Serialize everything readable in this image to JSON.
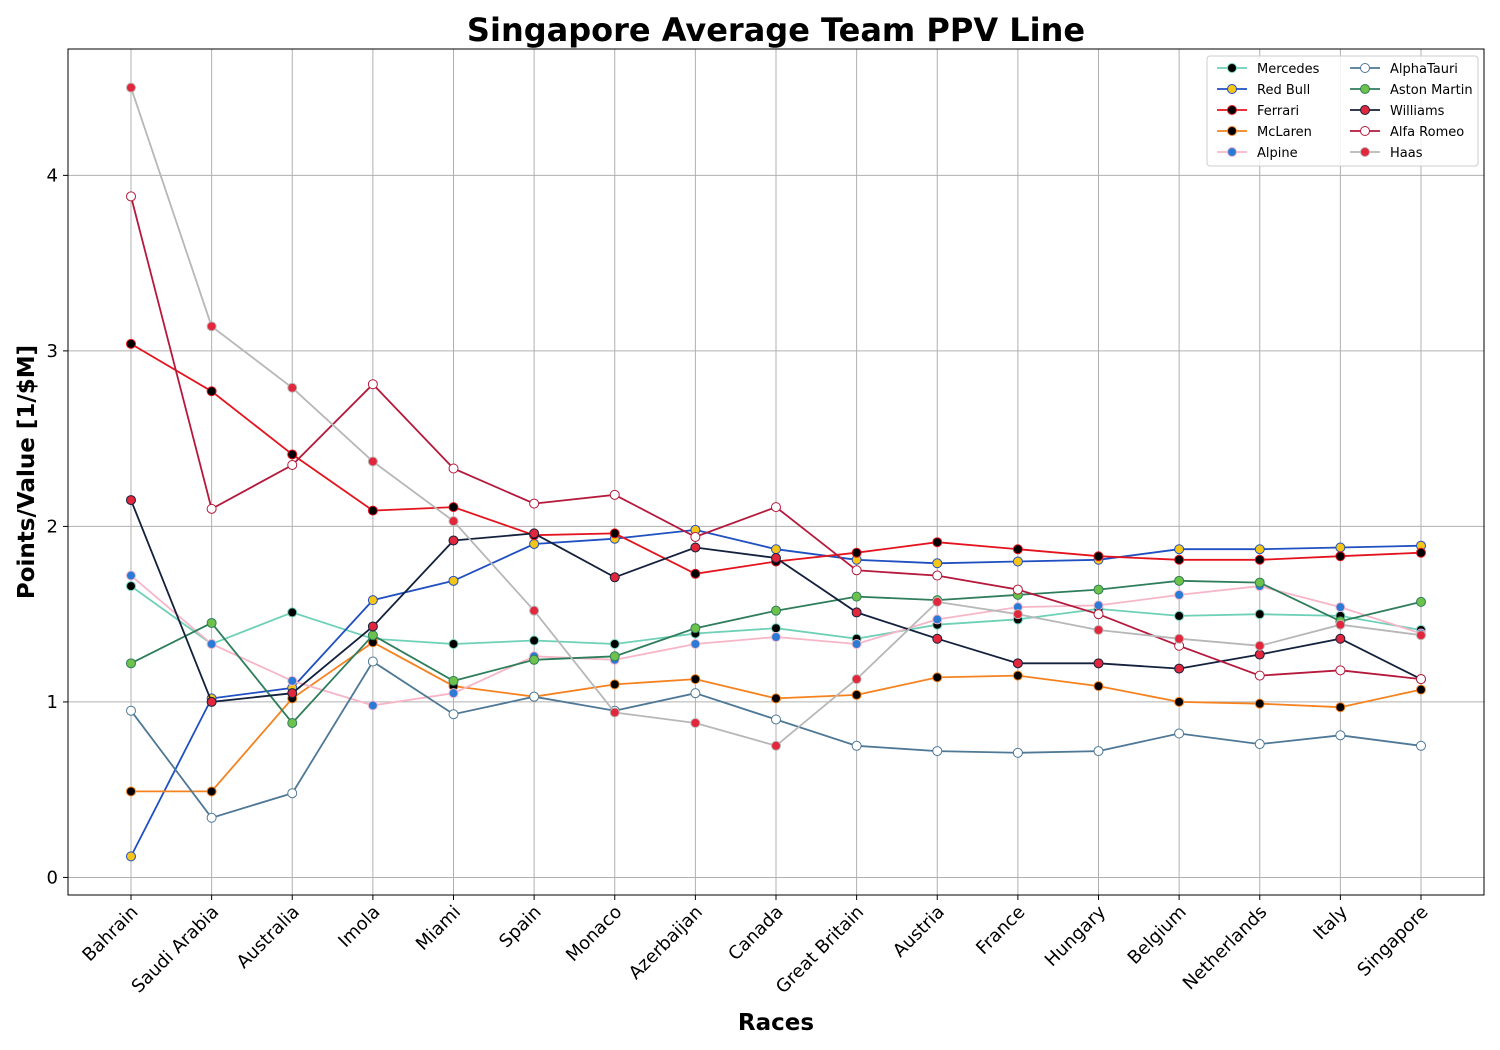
{
  "chart_data": {
    "type": "line",
    "title": "Singapore Average Team PPV Line",
    "xlabel": "Races",
    "ylabel": "Points/Value [1/$M]",
    "categories": [
      "Bahrain",
      "Saudi Arabia",
      "Australia",
      "Imola",
      "Miami",
      "Spain",
      "Monaco",
      "Azerbaijan",
      "Canada",
      "Great Britain",
      "Austria",
      "France",
      "Hungary",
      "Belgium",
      "Netherlands",
      "Italy",
      "Singapore"
    ],
    "ylim": [
      -0.1,
      4.72
    ],
    "yticks": [
      0,
      1,
      2,
      3,
      4
    ],
    "grid": true,
    "legend_position": "top-right",
    "series": [
      {
        "name": "Mercedes",
        "line_color": "#6fd0b8",
        "marker_face": "#000000",
        "marker_edge": "#6fd0b8",
        "values": [
          1.66,
          1.33,
          1.51,
          1.36,
          1.33,
          1.35,
          1.33,
          1.39,
          1.42,
          1.36,
          1.44,
          1.47,
          1.53,
          1.49,
          1.5,
          1.49,
          1.41
        ]
      },
      {
        "name": "Red Bull",
        "line_color": "#1f4fc0",
        "marker_face": "#f5c518",
        "marker_edge": "#1f4fc0",
        "values": [
          0.12,
          1.02,
          1.08,
          1.58,
          1.69,
          1.9,
          1.93,
          1.98,
          1.87,
          1.81,
          1.79,
          1.8,
          1.81,
          1.87,
          1.87,
          1.88,
          1.89
        ]
      },
      {
        "name": "Ferrari",
        "line_color": "#e4141e",
        "marker_face": "#000000",
        "marker_edge": "#e4141e",
        "values": [
          3.04,
          2.77,
          2.41,
          2.09,
          2.11,
          1.95,
          1.96,
          1.73,
          1.8,
          1.85,
          1.91,
          1.87,
          1.83,
          1.81,
          1.81,
          1.83,
          1.85
        ]
      },
      {
        "name": "McLaren",
        "line_color": "#f5821f",
        "marker_face": "#000000",
        "marker_edge": "#f5821f",
        "values": [
          0.49,
          0.49,
          1.02,
          1.34,
          1.09,
          1.03,
          1.1,
          1.13,
          1.02,
          1.04,
          1.14,
          1.15,
          1.09,
          1.0,
          0.99,
          0.97,
          1.07
        ]
      },
      {
        "name": "Alpine",
        "line_color": "#f7b6c8",
        "marker_face": "#2b7bd6",
        "marker_edge": "#f7b6c8",
        "values": [
          1.72,
          1.33,
          1.12,
          0.98,
          1.05,
          1.26,
          1.24,
          1.33,
          1.37,
          1.33,
          1.47,
          1.54,
          1.55,
          1.61,
          1.66,
          1.54,
          1.39
        ]
      },
      {
        "name": "AlphaTauri",
        "line_color": "#4e7896",
        "marker_face": "#ffffff",
        "marker_edge": "#4e7896",
        "values": [
          0.95,
          0.34,
          0.48,
          1.23,
          0.93,
          1.03,
          0.95,
          1.05,
          0.9,
          0.75,
          0.72,
          0.71,
          0.72,
          0.82,
          0.76,
          0.81,
          0.75
        ]
      },
      {
        "name": "Aston Martin",
        "line_color": "#2e7d5b",
        "marker_face": "#6cc24a",
        "marker_edge": "#2e7d5b",
        "values": [
          1.22,
          1.45,
          0.88,
          1.38,
          1.12,
          1.24,
          1.26,
          1.42,
          1.52,
          1.6,
          1.58,
          1.61,
          1.64,
          1.69,
          1.68,
          1.46,
          1.57
        ]
      },
      {
        "name": "Williams",
        "line_color": "#14213d",
        "marker_face": "#e2263b",
        "marker_edge": "#14213d",
        "values": [
          2.15,
          1.0,
          1.05,
          1.43,
          1.92,
          1.96,
          1.71,
          1.88,
          1.82,
          1.51,
          1.36,
          1.22,
          1.22,
          1.19,
          1.27,
          1.36,
          1.13
        ]
      },
      {
        "name": "Alfa Romeo",
        "line_color": "#b5193c",
        "marker_face": "#ffffff",
        "marker_edge": "#b5193c",
        "values": [
          3.88,
          2.1,
          2.35,
          2.81,
          2.33,
          2.13,
          2.18,
          1.94,
          2.11,
          1.75,
          1.72,
          1.64,
          1.5,
          1.32,
          1.15,
          1.18,
          1.13
        ]
      },
      {
        "name": "Haas",
        "line_color": "#b7b7b7",
        "marker_face": "#e2263b",
        "marker_edge": "#b7b7b7",
        "values": [
          4.5,
          3.14,
          2.79,
          2.37,
          2.03,
          1.52,
          0.94,
          0.88,
          0.75,
          1.13,
          1.57,
          1.5,
          1.41,
          1.36,
          1.32,
          1.44,
          1.38
        ]
      }
    ]
  }
}
